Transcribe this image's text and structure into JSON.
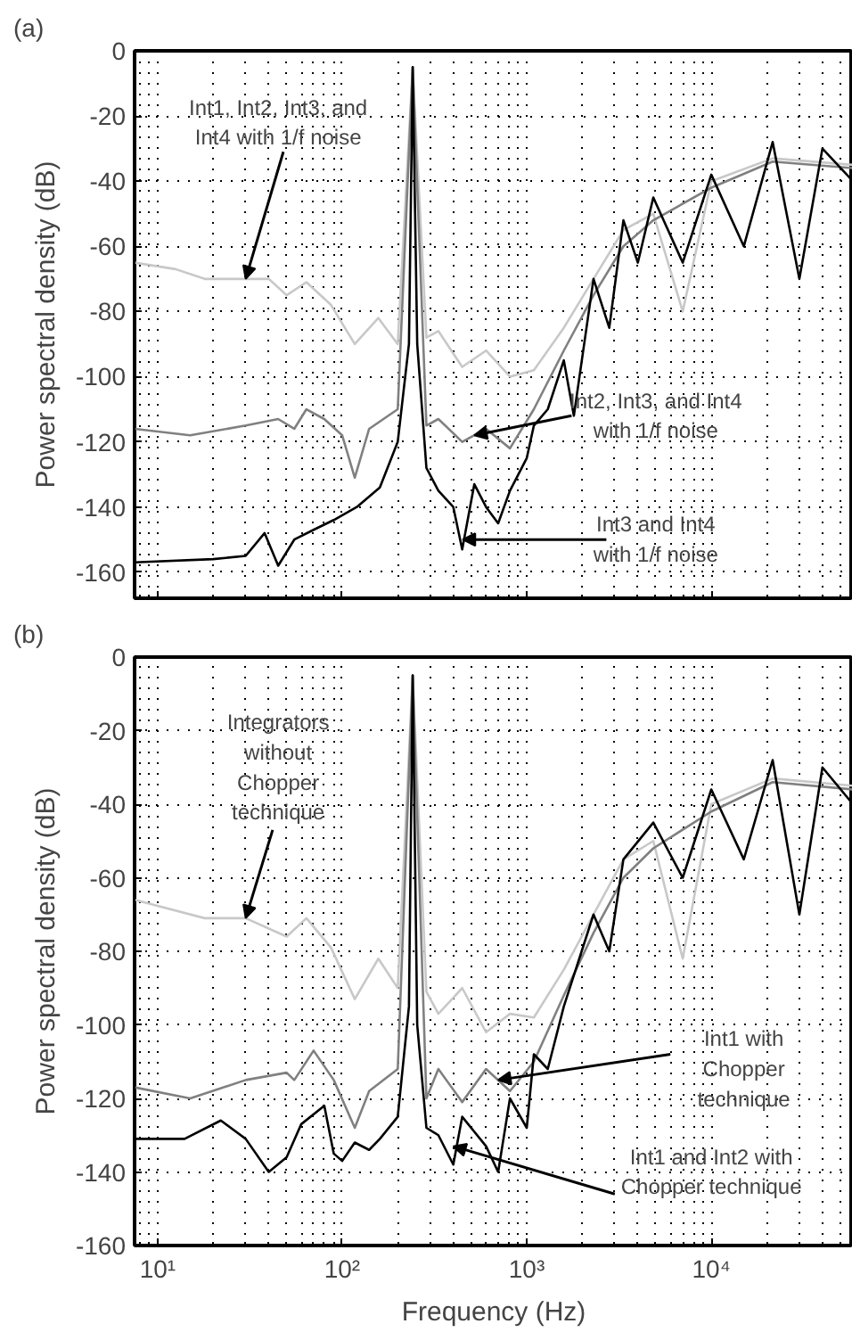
{
  "chart_data": [
    {
      "type": "line",
      "title": "(a)",
      "ylabel": "Power spectral density (dB)",
      "log": "x",
      "grid": true,
      "tick_labels": "y",
      "xlim": [
        7.5,
        58500
      ],
      "ylim": [
        -168,
        0
      ],
      "xticks": [
        {
          "value": 10,
          "label": "10¹"
        },
        {
          "value": 100,
          "label": "10²"
        },
        {
          "value": 1000,
          "label": "10³"
        },
        {
          "value": 10000,
          "label": "10⁴"
        }
      ],
      "yticks": [
        -160,
        -140,
        -120,
        -100,
        -80,
        -60,
        -40,
        -20,
        0
      ],
      "annotations": [
        {
          "text": "Int1, Int2, Int3, and Int4 with 1/f noise",
          "x": 30,
          "y": -70
        },
        {
          "text": "Int2, Int3, and Int4 with 1/f noise",
          "x": 520,
          "y": -118
        },
        {
          "text": "Int3 and Int4 with 1/f noise",
          "x": 450,
          "y": -150
        }
      ],
      "series": [
        {
          "color": "#c8c8c8",
          "x": [
            7.5,
            12.5,
            18,
            30,
            40,
            50,
            64,
            87,
            117,
            157,
            200,
            241,
            286,
            332,
            447,
            602,
            811,
            1093,
            1588,
            2300,
            3340,
            4850,
            7000,
            10000,
            21500,
            58500
          ],
          "values": [
            -65,
            -67,
            -70,
            -70,
            -70,
            -75,
            -71,
            -78,
            -90,
            -82,
            -90,
            -5,
            -88,
            -86,
            -97,
            -92,
            -100,
            -98,
            -85,
            -70,
            -55,
            -50,
            -80,
            -40,
            -33,
            -35
          ]
        },
        {
          "color": "#808080",
          "x": [
            7.5,
            15,
            30,
            45,
            55,
            64,
            80,
            100,
            117,
            140,
            200,
            241,
            286,
            332,
            447,
            602,
            811,
            1093,
            1588,
            2300,
            3340,
            4850,
            10000,
            21500,
            58500
          ],
          "values": [
            -116,
            -118,
            -115,
            -113,
            -116,
            -110,
            -113,
            -118,
            -131,
            -116,
            -110,
            -5,
            -115,
            -113,
            -120,
            -116,
            -122,
            -110,
            -92,
            -75,
            -60,
            -52,
            -42,
            -34,
            -36
          ]
        },
        {
          "color": "#000000",
          "x": [
            7.5,
            20,
            30,
            38,
            45,
            55,
            70,
            90,
            120,
            160,
            200,
            230,
            241,
            255,
            286,
            332,
            400,
            447,
            520,
            602,
            700,
            811,
            1000,
            1093,
            1300,
            1588,
            1800,
            2300,
            2800,
            3340,
            4000,
            4850,
            7000,
            10000,
            15000,
            21500,
            30000,
            40000,
            58500
          ],
          "values": [
            -157,
            -156,
            -155,
            -148,
            -158,
            -150,
            -147,
            -144,
            -140,
            -134,
            -120,
            -90,
            -5,
            -90,
            -128,
            -135,
            -140,
            -153,
            -133,
            -140,
            -145,
            -135,
            -125,
            -115,
            -110,
            -95,
            -112,
            -70,
            -85,
            -52,
            -65,
            -45,
            -65,
            -38,
            -60,
            -28,
            -70,
            -30,
            -40
          ]
        }
      ]
    },
    {
      "type": "line",
      "title": "(b)",
      "xlabel": "Frequency (Hz)",
      "ylabel": "Power spectral density (dB)",
      "log": "x",
      "grid": true,
      "xlim": [
        7.5,
        58500
      ],
      "ylim": [
        -160,
        0
      ],
      "xticks": [
        {
          "value": 10,
          "label": "10¹"
        },
        {
          "value": 100,
          "label": "10²"
        },
        {
          "value": 1000,
          "label": "10³"
        },
        {
          "value": 10000,
          "label": "10⁴"
        }
      ],
      "yticks": [
        -160,
        -140,
        -120,
        -100,
        -80,
        -60,
        -40,
        -20,
        0
      ],
      "annotations": [
        {
          "text": "Integrators without Chopper technique",
          "x": 30,
          "y": -71
        },
        {
          "text": "Int1 with Chopper technique",
          "x": 700,
          "y": -115
        },
        {
          "text": "Int1 and Int2 with Chopper technique",
          "x": 400,
          "y": -133
        }
      ],
      "series": [
        {
          "color": "#c8c8c8",
          "x": [
            7.5,
            18,
            30,
            50,
            64,
            87,
            117,
            157,
            200,
            241,
            286,
            332,
            447,
            602,
            811,
            1093,
            1588,
            2300,
            3340,
            4850,
            7000,
            10000,
            21500,
            58500
          ],
          "values": [
            -66,
            -71,
            -71,
            -76,
            -71,
            -79,
            -93,
            -82,
            -90,
            -5,
            -91,
            -97,
            -90,
            -102,
            -97,
            -98,
            -85,
            -70,
            -55,
            -50,
            -82,
            -40,
            -33,
            -35
          ]
        },
        {
          "color": "#808080",
          "x": [
            7.5,
            15,
            30,
            50,
            55,
            70,
            90,
            117,
            140,
            200,
            241,
            286,
            332,
            447,
            602,
            811,
            1093,
            1588,
            2300,
            3340,
            4850,
            10000,
            21500,
            58500
          ],
          "values": [
            -117,
            -120,
            -115,
            -113,
            -115,
            -107,
            -115,
            -128,
            -118,
            -112,
            -5,
            -120,
            -112,
            -121,
            -112,
            -118,
            -110,
            -92,
            -75,
            -60,
            -52,
            -42,
            -34,
            -36
          ]
        },
        {
          "color": "#000000",
          "x": [
            7.5,
            14,
            22,
            30,
            40,
            50,
            60,
            80,
            90,
            100,
            117,
            140,
            160,
            200,
            230,
            241,
            255,
            286,
            332,
            400,
            447,
            602,
            700,
            811,
            1000,
            1093,
            1300,
            1588,
            2300,
            2800,
            3340,
            4850,
            7000,
            10000,
            15000,
            21500,
            30000,
            40000,
            58500
          ],
          "values": [
            -131,
            -131,
            -126,
            -131,
            -140,
            -136,
            -127,
            -122,
            -135,
            -137,
            -132,
            -134,
            -131,
            -125,
            -95,
            -5,
            -100,
            -128,
            -130,
            -138,
            -125,
            -133,
            -140,
            -120,
            -128,
            -108,
            -112,
            -95,
            -70,
            -80,
            -55,
            -45,
            -60,
            -36,
            -55,
            -28,
            -70,
            -30,
            -40
          ]
        }
      ]
    }
  ]
}
